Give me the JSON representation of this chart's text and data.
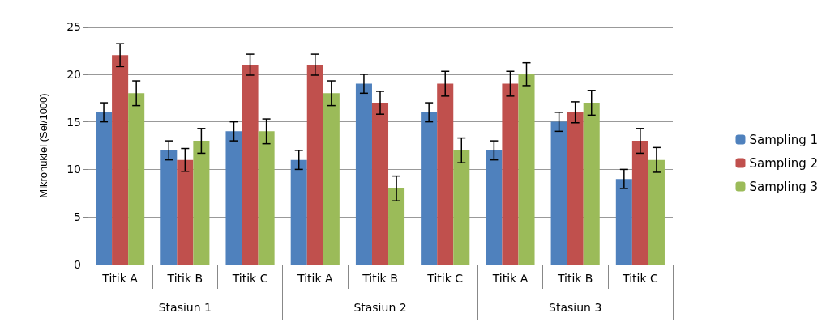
{
  "chart_data": {
    "type": "bar",
    "ylabel": "Mikronuklei (Sel/1000)",
    "categories": [
      "Titik A",
      "Titik B",
      "Titik C",
      "Titik A",
      "Titik B",
      "Titik C",
      "Titik A",
      "Titik B",
      "Titik C"
    ],
    "annotations": [
      "Stasiun 1",
      "Stasiun 2",
      "Stasiun 3"
    ],
    "series": [
      {
        "name": "Sampling 1",
        "color": "#4f81bd",
        "values": [
          16,
          12,
          14,
          11,
          19,
          16,
          12,
          15,
          9
        ],
        "errors": [
          1,
          1,
          1,
          1,
          1,
          1,
          1,
          1,
          1
        ]
      },
      {
        "name": "Sampling 2",
        "color": "#c0504d",
        "values": [
          22,
          11,
          21,
          21,
          17,
          19,
          19,
          16,
          13
        ],
        "errors": [
          1.2,
          1.2,
          1.1,
          1.1,
          1.2,
          1.3,
          1.3,
          1.1,
          1.3
        ]
      },
      {
        "name": "Sampling 3",
        "color": "#9bbb59",
        "values": [
          18,
          13,
          14,
          18,
          8,
          12,
          20,
          17,
          11
        ],
        "errors": [
          1.3,
          1.3,
          1.3,
          1.3,
          1.3,
          1.3,
          1.2,
          1.3,
          1.3
        ]
      }
    ],
    "ylim": [
      0,
      25
    ],
    "yticks": [
      0,
      5,
      10,
      15,
      20,
      25
    ],
    "grid": "y",
    "legend": "right"
  }
}
